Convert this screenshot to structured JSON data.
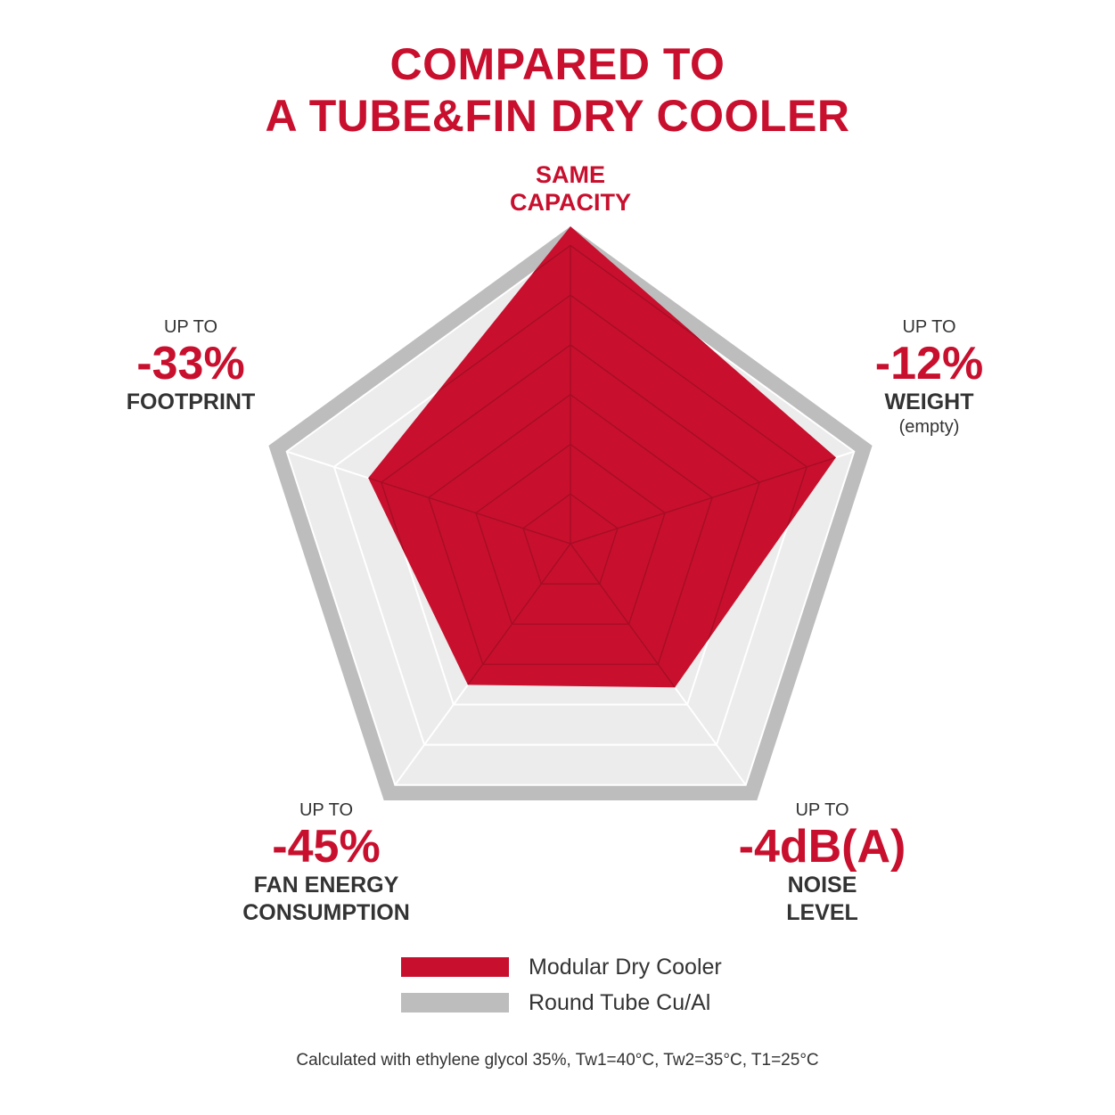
{
  "title_line1": "COMPARED TO",
  "title_line2": "A TUBE&FIN DRY COOLER",
  "labels": {
    "capacity": {
      "line1": "SAME",
      "line2": "CAPACITY"
    },
    "weight": {
      "prefix": "UP TO",
      "value": "-12%",
      "name": "WEIGHT",
      "sub": "(empty)"
    },
    "noise": {
      "prefix": "UP TO",
      "value": "-4dB(A)",
      "name1": "NOISE",
      "name2": "LEVEL"
    },
    "fan": {
      "prefix": "UP TO",
      "value": "-45%",
      "name1": "FAN ENERGY",
      "name2": "CONSUMPTION"
    },
    "footprint": {
      "prefix": "UP TO",
      "value": "-33%",
      "name": "FOOTPRINT"
    }
  },
  "legend": [
    {
      "label": "Modular Dry Cooler",
      "color": "#c8102e"
    },
    {
      "label": "Round Tube Cu/Al",
      "color": "#bdbdbd"
    }
  ],
  "footnote": "Calculated with ethylene glycol 35%, Tw1=40°C, Tw2=35°C, T1=25°C",
  "chart_data": {
    "type": "radar",
    "axes": [
      "SAME CAPACITY",
      "WEIGHT",
      "NOISE LEVEL",
      "FAN ENERGY CONSUMPTION",
      "FOOTPRINT"
    ],
    "series": [
      {
        "name": "Modular Dry Cooler",
        "values": [
          1.0,
          0.88,
          0.56,
          0.55,
          0.67
        ],
        "color": "#c8102e"
      },
      {
        "name": "Round Tube Cu/Al",
        "values": [
          1.0,
          1.0,
          1.0,
          1.0,
          1.0
        ],
        "color": "#bdbdbd"
      }
    ],
    "range": [
      0,
      1
    ],
    "rings": 6
  }
}
